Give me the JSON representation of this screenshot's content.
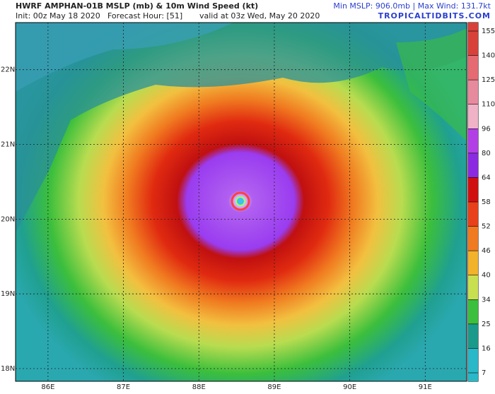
{
  "header": {
    "title": "HWRF AMPHAN-01B MSLP (mb) & 10m Wind Speed (kt)",
    "init": "Init: 00z May 18 2020",
    "forecast_hour": "Forecast Hour: [51]",
    "valid": "valid at 03z Wed, May 20 2020",
    "stats": "Min MSLP: 906.0mb | Max Wind: 131.7kt",
    "site": "TROPICALTIDBITS.COM"
  },
  "map": {
    "xlim": [
      85.57,
      91.55
    ],
    "ylim": [
      17.83,
      22.63
    ],
    "xticks": [
      {
        "value": 86,
        "label": "86E"
      },
      {
        "value": 87,
        "label": "87E"
      },
      {
        "value": 88,
        "label": "88E"
      },
      {
        "value": 89,
        "label": "89E"
      },
      {
        "value": 90,
        "label": "90E"
      },
      {
        "value": 91,
        "label": "91E"
      }
    ],
    "yticks": [
      {
        "value": 18,
        "label": "18N"
      },
      {
        "value": 19,
        "label": "19N"
      },
      {
        "value": 20,
        "label": "20N"
      },
      {
        "value": 21,
        "label": "21N"
      },
      {
        "value": 22,
        "label": "22N"
      }
    ],
    "grid": true,
    "colorbar": {
      "ticks": [
        155,
        140,
        125,
        110,
        96,
        80,
        64,
        58,
        52,
        46,
        40,
        34,
        25,
        16,
        7
      ],
      "colors": [
        "#d8403a",
        "#e56a72",
        "#e88a9e",
        "#efb2c6",
        "#b23fe6",
        "#8a2be2",
        "#d01010",
        "#e8401a",
        "#f07a20",
        "#f2b22a",
        "#c8e050",
        "#3cbf3c",
        "#1a9a8a",
        "#28b8c8"
      ]
    }
  }
}
